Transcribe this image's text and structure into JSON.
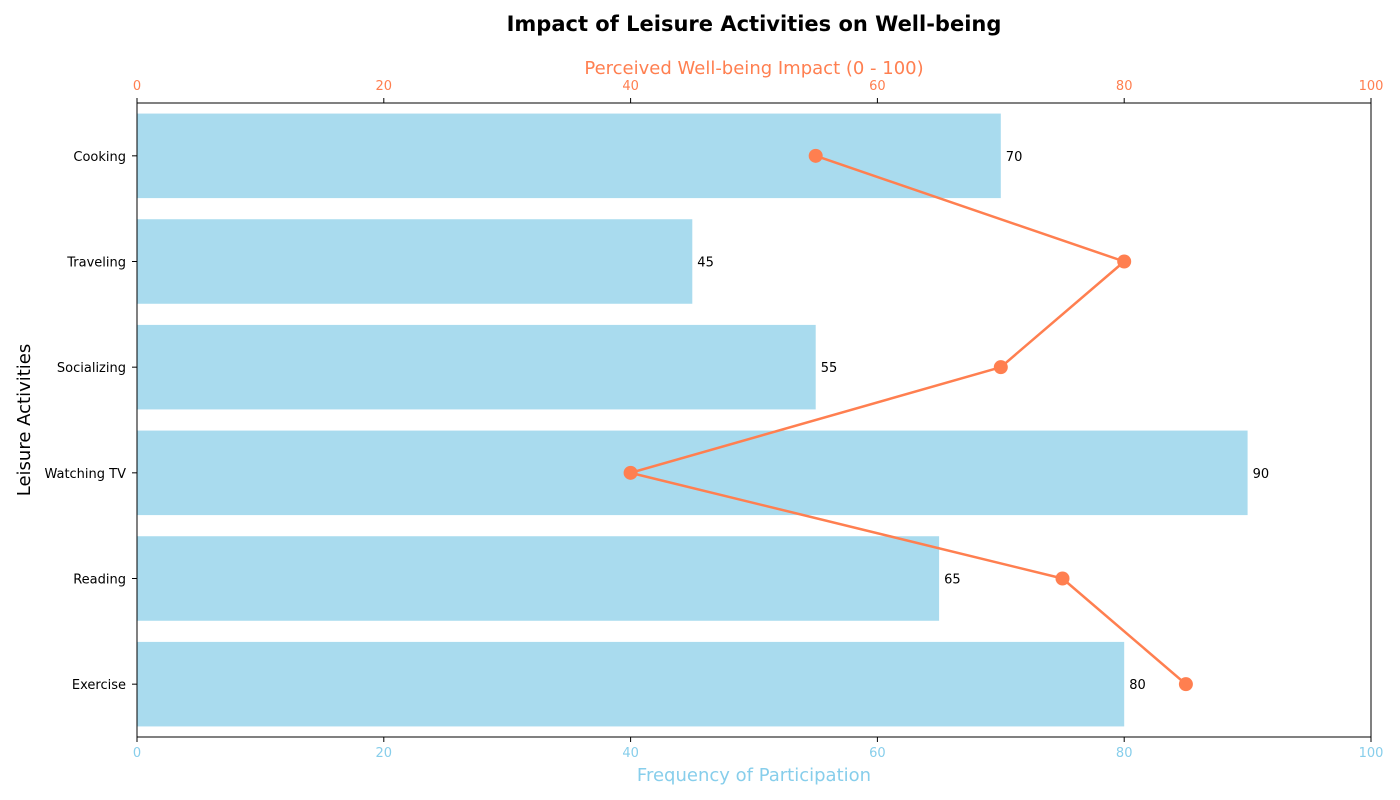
{
  "chart_data": {
    "type": "bar",
    "orientation": "horizontal",
    "title": "Impact of Leisure Activities on Well-being",
    "ylabel": "Leisure Activities",
    "categories": [
      "Exercise",
      "Reading",
      "Watching TV",
      "Socializing",
      "Traveling",
      "Cooking"
    ],
    "bar_axis": {
      "label": "Frequency of Participation",
      "position": "bottom",
      "range": [
        0,
        100
      ],
      "ticks": [
        0,
        20,
        40,
        60,
        80,
        100
      ],
      "color": "#87ceeb"
    },
    "line_axis": {
      "label": "Perceived Well-being Impact (0 - 100)",
      "position": "top",
      "range": [
        0,
        100
      ],
      "ticks": [
        0,
        20,
        40,
        60,
        80,
        100
      ],
      "color": "#ff7f50"
    },
    "series": [
      {
        "type": "bar",
        "axis": "bottom",
        "values": [
          80,
          65,
          90,
          55,
          45,
          70
        ],
        "color": "#a9dbee",
        "data_labels": true
      },
      {
        "type": "line",
        "axis": "top",
        "values": [
          85,
          75,
          40,
          70,
          80,
          55
        ],
        "color": "#ff7f50",
        "markers": true
      }
    ],
    "grid": false,
    "legend": "none"
  }
}
